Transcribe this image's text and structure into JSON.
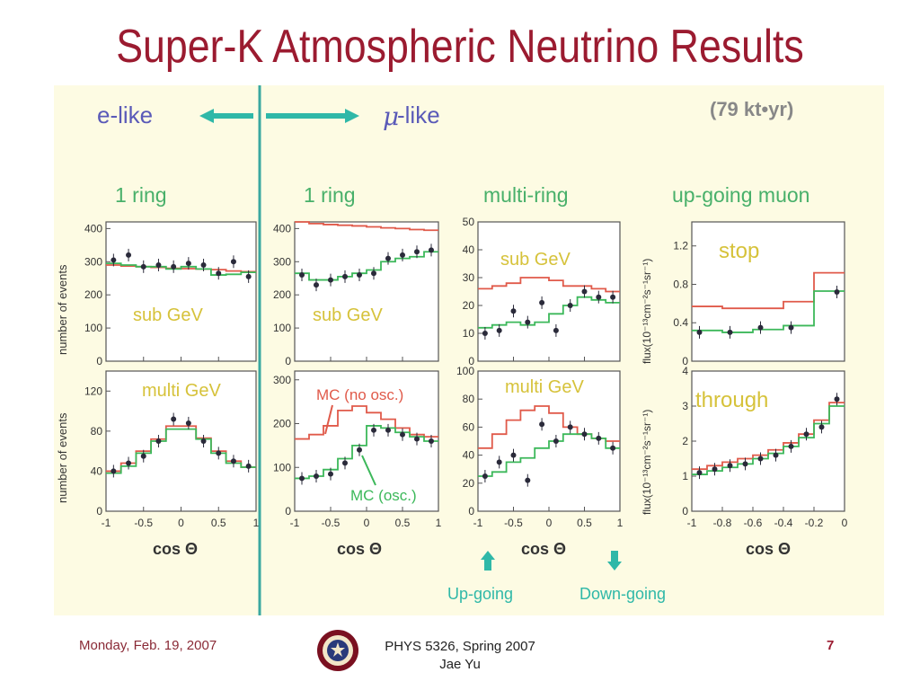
{
  "slide": {
    "title": "Super-K Atmospheric Neutrino Results",
    "footer_date": "Monday, Feb. 19, 2007",
    "footer_course": "PHYS 5326, Spring 2007",
    "footer_author": "Jae Yu",
    "page_number": "7"
  },
  "figure": {
    "e_like": "e-like",
    "mu_symbol": "μ",
    "mu_like": " -like",
    "exposure": "(79 kt•yr)",
    "ylabel_events": "number of events",
    "ylabel_flux": "flux(10⁻¹³cm⁻²s⁻¹sr⁻¹)",
    "xlabel": "cos Θ",
    "mc_no_osc": "MC (no osc.)",
    "mc_osc": "MC (osc.)",
    "up_going": "Up-going",
    "down_going": "Down-going",
    "colors": {
      "data": "#2a2a3a",
      "no_osc": "#e05a4a",
      "osc": "#3cb85a",
      "column_title": "#48b06a",
      "panel_label": "#d6c23a",
      "elike": "#5a5ab8",
      "arrow": "#2fb8a8",
      "separator": "#3aa8a0"
    }
  },
  "chart_data": [
    {
      "type": "line",
      "column": "1 ring",
      "row": "sub GeV",
      "flavor": "e-like",
      "label": "sub GeV",
      "ylim": [
        0,
        420
      ],
      "yticks": [
        "400",
        "300",
        "200",
        "100",
        "0"
      ],
      "ytickv": [
        400,
        300,
        200,
        100,
        0
      ],
      "xlim": [
        -1,
        1
      ],
      "xticks": [
        "-1",
        "-0.5",
        "0",
        "0.5",
        "1"
      ],
      "xtickv": [
        -1,
        -0.5,
        0,
        0.5,
        1
      ],
      "points": {
        "x": [
          -0.9,
          -0.7,
          -0.5,
          -0.3,
          -0.1,
          0.1,
          0.3,
          0.5,
          0.7,
          0.9
        ],
        "y": [
          305,
          320,
          285,
          290,
          285,
          295,
          290,
          265,
          300,
          255
        ]
      },
      "no_osc": [
        290,
        287,
        285,
        283,
        280,
        279,
        278,
        276,
        272,
        270
      ],
      "osc": [
        295,
        290,
        285,
        285,
        278,
        285,
        278,
        260,
        262,
        268
      ]
    },
    {
      "type": "line",
      "column": "1 ring",
      "row": "sub GeV",
      "flavor": "mu-like",
      "label": "sub GeV",
      "ylim": [
        0,
        420
      ],
      "yticks": [
        "400",
        "300",
        "200",
        "100",
        "0"
      ],
      "ytickv": [
        400,
        300,
        200,
        100,
        0
      ],
      "xlim": [
        -1,
        1
      ],
      "xticks": [
        "-1",
        "-0.5",
        "0",
        "0.5",
        "1"
      ],
      "xtickv": [
        -1,
        -0.5,
        0,
        0.5,
        1
      ],
      "points": {
        "x": [
          -0.9,
          -0.7,
          -0.5,
          -0.3,
          -0.1,
          0.1,
          0.3,
          0.5,
          0.7,
          0.9
        ],
        "y": [
          260,
          230,
          245,
          255,
          260,
          265,
          310,
          320,
          330,
          335
        ]
      },
      "no_osc": [
        420,
        415,
        412,
        410,
        408,
        405,
        402,
        400,
        397,
        395
      ],
      "osc": [
        265,
        245,
        245,
        255,
        265,
        275,
        300,
        310,
        315,
        330
      ]
    },
    {
      "type": "line",
      "column": "multi-ring",
      "row": "sub GeV",
      "label": "sub GeV",
      "ylim": [
        0,
        50
      ],
      "yticks": [
        "50",
        "40",
        "30",
        "20",
        "10",
        "0"
      ],
      "ytickv": [
        50,
        40,
        30,
        20,
        10,
        0
      ],
      "xlim": [
        -1,
        1
      ],
      "xticks": [
        "-1",
        "-0.5",
        "0",
        "0.5",
        "1"
      ],
      "xtickv": [
        -1,
        -0.5,
        0,
        0.5,
        1
      ],
      "points": {
        "x": [
          -0.9,
          -0.7,
          -0.5,
          -0.3,
          -0.1,
          0.1,
          0.3,
          0.5,
          0.7,
          0.9
        ],
        "y": [
          10,
          11,
          18,
          14,
          21,
          11,
          20,
          25,
          23,
          23
        ]
      },
      "no_osc": [
        26,
        27,
        28,
        30,
        30,
        29,
        27,
        27,
        26,
        25
      ],
      "osc": [
        12,
        13,
        14,
        13,
        14,
        17,
        20,
        23,
        22,
        21
      ]
    },
    {
      "type": "line",
      "column": "up-going muon",
      "row": "stop",
      "label": "stop",
      "ylim": [
        0,
        1.45
      ],
      "yticks": [
        "1.2",
        "0.8",
        "0.4",
        "0"
      ],
      "ytickv": [
        1.2,
        0.8,
        0.4,
        0
      ],
      "xlim": [
        -1,
        0
      ],
      "xticks": [],
      "xtickv": [],
      "points": {
        "x": [
          -0.95,
          -0.75,
          -0.55,
          -0.35,
          -0.05
        ],
        "y": [
          0.3,
          0.3,
          0.35,
          0.35,
          0.72
        ]
      },
      "no_osc": [
        0.57,
        0.55,
        0.55,
        0.62,
        0.92
      ],
      "osc": [
        0.32,
        0.3,
        0.33,
        0.37,
        0.73
      ]
    },
    {
      "type": "line",
      "column": "1 ring",
      "row": "multi GeV",
      "flavor": "e-like",
      "label": "multi GeV",
      "ylim": [
        0,
        140
      ],
      "yticks": [
        "120",
        "80",
        "40",
        "0"
      ],
      "ytickv": [
        120,
        80,
        40,
        0
      ],
      "xlim": [
        -1,
        1
      ],
      "xticks": [
        "-1",
        "-0.5",
        "0",
        "0.5",
        "1"
      ],
      "xtickv": [
        -1,
        -0.5,
        0,
        0.5,
        1
      ],
      "points": {
        "x": [
          -0.9,
          -0.7,
          -0.5,
          -0.3,
          -0.1,
          0.1,
          0.3,
          0.5,
          0.7,
          0.9
        ],
        "y": [
          40,
          48,
          55,
          70,
          92,
          88,
          70,
          58,
          50,
          45
        ]
      },
      "no_osc": [
        40,
        48,
        60,
        72,
        85,
        85,
        73,
        60,
        50,
        44
      ],
      "osc": [
        38,
        45,
        58,
        70,
        82,
        82,
        72,
        58,
        48,
        44
      ]
    },
    {
      "type": "line",
      "column": "1 ring",
      "row": "multi GeV",
      "flavor": "mu-like",
      "label": "",
      "ylim": [
        0,
        320
      ],
      "yticks": [
        "300",
        "200",
        "100",
        "0"
      ],
      "ytickv": [
        300,
        200,
        100,
        0
      ],
      "xlim": [
        -1,
        1
      ],
      "xticks": [
        "-1",
        "-0.5",
        "0",
        "0.5",
        "1"
      ],
      "xtickv": [
        -1,
        -0.5,
        0,
        0.5,
        1
      ],
      "points": {
        "x": [
          -0.9,
          -0.7,
          -0.5,
          -0.3,
          -0.1,
          0.1,
          0.3,
          0.5,
          0.7,
          0.9
        ],
        "y": [
          75,
          80,
          85,
          110,
          140,
          185,
          185,
          175,
          165,
          160
        ]
      },
      "no_osc": [
        165,
        175,
        195,
        230,
        240,
        225,
        210,
        190,
        175,
        170
      ],
      "osc": [
        75,
        80,
        95,
        120,
        150,
        195,
        190,
        180,
        170,
        160
      ]
    },
    {
      "type": "line",
      "column": "multi-ring",
      "row": "multi GeV",
      "label": "multi GeV",
      "ylim": [
        0,
        100
      ],
      "yticks": [
        "100",
        "80",
        "60",
        "40",
        "20",
        "0"
      ],
      "ytickv": [
        100,
        80,
        60,
        40,
        20,
        0
      ],
      "xlim": [
        -1,
        1
      ],
      "xticks": [
        "-1",
        "-0.5",
        "0",
        "0.5",
        "1"
      ],
      "xtickv": [
        -1,
        -0.5,
        0,
        0.5,
        1
      ],
      "points": {
        "x": [
          -0.9,
          -0.7,
          -0.5,
          -0.3,
          -0.1,
          0.1,
          0.3,
          0.5,
          0.7,
          0.9
        ],
        "y": [
          25,
          35,
          40,
          22,
          62,
          50,
          60,
          55,
          52,
          45
        ]
      },
      "no_osc": [
        45,
        55,
        65,
        72,
        75,
        70,
        60,
        55,
        52,
        50
      ],
      "osc": [
        25,
        28,
        35,
        38,
        45,
        50,
        55,
        55,
        52,
        45
      ]
    },
    {
      "type": "line",
      "column": "up-going muon",
      "row": "through",
      "label": "through",
      "ylim": [
        0,
        4
      ],
      "yticks": [
        "4",
        "3",
        "2",
        "1",
        "0"
      ],
      "ytickv": [
        4,
        3,
        2,
        1,
        0
      ],
      "xlim": [
        -1,
        0
      ],
      "xticks": [
        "-1",
        "-0.8",
        "-0.6",
        "-0.4",
        "-0.2",
        "0"
      ],
      "xtickv": [
        -1,
        -0.8,
        -0.6,
        -0.4,
        -0.2,
        0
      ],
      "points": {
        "x": [
          -0.95,
          -0.85,
          -0.75,
          -0.65,
          -0.55,
          -0.45,
          -0.35,
          -0.25,
          -0.15,
          -0.05
        ],
        "y": [
          1.1,
          1.2,
          1.3,
          1.35,
          1.5,
          1.6,
          1.85,
          2.2,
          2.4,
          3.2
        ]
      },
      "no_osc": [
        1.2,
        1.3,
        1.4,
        1.5,
        1.6,
        1.75,
        1.95,
        2.2,
        2.6,
        3.1
      ],
      "osc": [
        1.05,
        1.15,
        1.25,
        1.35,
        1.5,
        1.65,
        1.85,
        2.1,
        2.5,
        3.0
      ]
    }
  ],
  "column_titles": [
    "1 ring",
    "1 ring",
    "multi-ring",
    "up-going muon"
  ]
}
